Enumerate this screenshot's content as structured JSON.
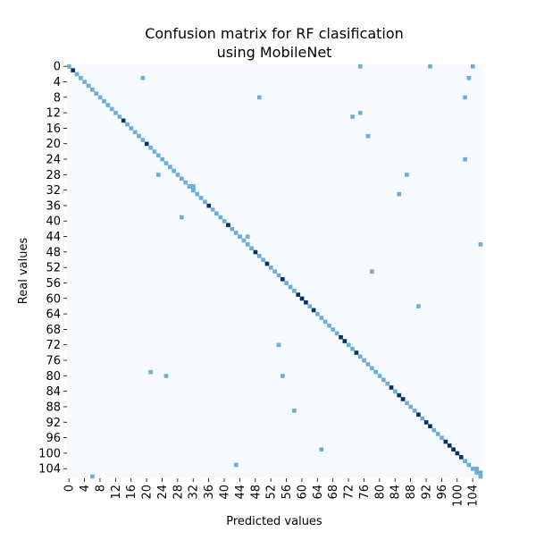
{
  "chart_data": {
    "type": "heatmap",
    "title_line1": "Confusion matrix for RF clasification",
    "title_line2": "using MobileNet",
    "xlabel": "Predicted values",
    "ylabel": "Real values",
    "n_classes": 107,
    "tick_labels": [
      "0",
      "4",
      "8",
      "12",
      "16",
      "20",
      "24",
      "28",
      "32",
      "36",
      "40",
      "44",
      "48",
      "52",
      "56",
      "60",
      "64",
      "68",
      "72",
      "76",
      "80",
      "84",
      "88",
      "92",
      "96",
      "100",
      "104"
    ],
    "colorscale": [
      "#f7fbff",
      "#6baed6",
      "#08306b"
    ],
    "diagonal_strong": [
      1,
      14,
      20,
      36,
      41,
      48,
      51,
      55,
      59,
      60,
      61,
      63,
      70,
      71,
      74,
      83,
      85,
      86,
      90,
      92,
      93,
      97,
      98,
      99,
      100,
      101
    ],
    "diagonal_weak": [
      0,
      7,
      18,
      24,
      25,
      26,
      27,
      28,
      31,
      73,
      80,
      81,
      82,
      84,
      94,
      95,
      102,
      103,
      104,
      105,
      106
    ],
    "cells": [
      [
        0,
        75,
        0.5
      ],
      [
        0,
        93,
        0.5
      ],
      [
        0,
        104,
        0.5
      ],
      [
        3,
        19,
        0.5
      ],
      [
        3,
        103,
        0.5
      ],
      [
        8,
        49,
        0.5
      ],
      [
        8,
        102,
        0.5
      ],
      [
        12,
        75,
        0.5
      ],
      [
        13,
        73,
        0.5
      ],
      [
        18,
        77,
        0.5
      ],
      [
        24,
        102,
        0.5
      ],
      [
        26,
        26,
        0.5
      ],
      [
        28,
        23,
        0.5
      ],
      [
        28,
        87,
        0.5
      ],
      [
        31,
        31,
        0.5
      ],
      [
        31,
        32,
        0.5
      ],
      [
        32,
        32,
        0.5
      ],
      [
        33,
        85,
        0.5
      ],
      [
        39,
        29,
        0.5
      ],
      [
        44,
        44,
        0.5
      ],
      [
        44,
        46,
        0.5
      ],
      [
        46,
        107,
        0.5
      ],
      [
        53,
        78,
        0.5
      ],
      [
        62,
        90,
        0.5
      ],
      [
        72,
        54,
        0.5
      ],
      [
        76,
        76,
        0.5
      ],
      [
        79,
        21,
        0.5
      ],
      [
        80,
        25,
        0.5
      ],
      [
        80,
        55,
        0.5
      ],
      [
        89,
        58,
        0.5
      ],
      [
        99,
        65,
        0.5
      ],
      [
        103,
        43,
        0.5
      ],
      [
        104,
        105,
        0.5
      ],
      [
        105,
        106,
        0.5
      ],
      [
        106,
        6,
        0.5
      ],
      [
        106,
        108,
        0.5
      ]
    ]
  }
}
